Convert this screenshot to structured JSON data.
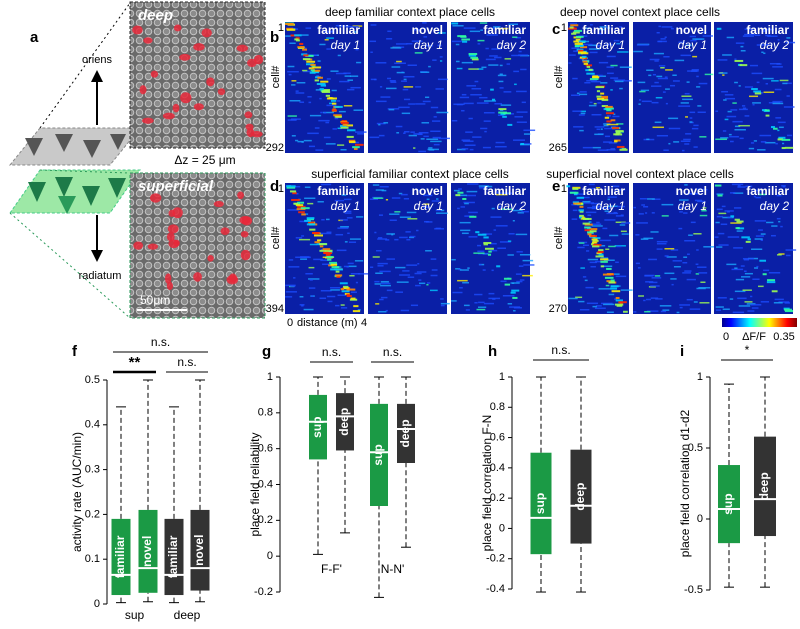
{
  "figure": {
    "a": {
      "label": "a",
      "oriens": "oriens",
      "radiatum": "radiatum",
      "deep": "deep",
      "superficial": "superficial",
      "dz": "Δz = 25 μm",
      "scale_bar": "50μm"
    },
    "heatmaps": [
      {
        "label": "b",
        "title": "deep familiar context place cells",
        "ylabel": "cell#",
        "first_cell": "1",
        "last_cell": "292",
        "tiles": [
          {
            "context": "familiar",
            "day": "day 1"
          },
          {
            "context": "novel",
            "day": "day 1"
          },
          {
            "context": "familiar",
            "day": "day 2"
          }
        ]
      },
      {
        "label": "c",
        "title": "deep novel context place cells",
        "ylabel": "cell#",
        "first_cell": "1",
        "last_cell": "265",
        "tiles": [
          {
            "context": "familiar",
            "day": "day 1"
          },
          {
            "context": "novel",
            "day": "day 1"
          },
          {
            "context": "familiar",
            "day": "day 2"
          }
        ]
      },
      {
        "label": "d",
        "title": "superficial familiar context place cells",
        "ylabel": "cell#",
        "first_cell": "1",
        "last_cell": "394",
        "tiles": [
          {
            "context": "familiar",
            "day": "day 1"
          },
          {
            "context": "novel",
            "day": "day 1"
          },
          {
            "context": "familiar",
            "day": "day 2"
          }
        ]
      },
      {
        "label": "e",
        "title": "superficial novel context place cells",
        "ylabel": "cell#",
        "first_cell": "1",
        "last_cell": "270",
        "tiles": [
          {
            "context": "familiar",
            "day": "day 1"
          },
          {
            "context": "novel",
            "day": "day 1"
          },
          {
            "context": "familiar",
            "day": "day 2"
          }
        ]
      }
    ],
    "distance_axis": {
      "start": "0",
      "label": "distance (m)",
      "end": "4"
    },
    "colorbar": {
      "min": "0",
      "label": "ΔF/F",
      "max": "0.35"
    }
  },
  "chart_data": [
    {
      "type": "box",
      "label": "f",
      "ylabel": "activity rate (AUC/min)",
      "ylim": [
        0,
        0.5
      ],
      "yticks": [
        0,
        0.1,
        0.2,
        0.3,
        0.4,
        0.5
      ],
      "groups": [
        "sup",
        "deep"
      ],
      "boxes": [
        {
          "label": "familiar",
          "color": "#1b9a45",
          "min": 0.003,
          "q1": 0.02,
          "median": 0.065,
          "q3": 0.19,
          "max": 0.44
        },
        {
          "label": "novel",
          "color": "#1b9a45",
          "min": 0.005,
          "q1": 0.025,
          "median": 0.08,
          "q3": 0.21,
          "max": 0.5
        },
        {
          "label": "familiar",
          "color": "#333333",
          "min": 0.003,
          "q1": 0.02,
          "median": 0.065,
          "q3": 0.19,
          "max": 0.44
        },
        {
          "label": "novel",
          "color": "#333333",
          "min": 0.005,
          "q1": 0.03,
          "median": 0.08,
          "q3": 0.21,
          "max": 0.5
        }
      ],
      "significance": [
        "n.s.",
        "**",
        "n.s."
      ]
    },
    {
      "type": "box",
      "label": "g",
      "ylabel": "place field reliability",
      "ylim": [
        -0.2,
        1
      ],
      "yticks": [
        -0.2,
        0,
        0.2,
        0.4,
        0.6,
        0.8,
        1
      ],
      "groups": [
        "F-F'",
        "N-N'"
      ],
      "boxes": [
        {
          "label": "sup",
          "color": "#1b9a45",
          "min": 0.01,
          "q1": 0.54,
          "median": 0.75,
          "q3": 0.9,
          "max": 1
        },
        {
          "label": "deep",
          "color": "#333333",
          "min": 0.13,
          "q1": 0.59,
          "median": 0.78,
          "q3": 0.91,
          "max": 1
        },
        {
          "label": "sup",
          "color": "#1b9a45",
          "min": -0.23,
          "q1": 0.28,
          "median": 0.58,
          "q3": 0.85,
          "max": 1
        },
        {
          "label": "deep",
          "color": "#333333",
          "min": 0.05,
          "q1": 0.52,
          "median": 0.71,
          "q3": 0.85,
          "max": 1
        }
      ],
      "significance": [
        "n.s.",
        "n.s."
      ]
    },
    {
      "type": "box",
      "label": "h",
      "ylabel": "place field correlation F-N",
      "ylim": [
        -0.4,
        1
      ],
      "yticks": [
        -0.4,
        -0.2,
        0,
        0.2,
        0.4,
        0.6,
        0.8,
        1
      ],
      "boxes": [
        {
          "label": "sup",
          "color": "#1b9a45",
          "min": -0.42,
          "q1": -0.17,
          "median": 0.07,
          "q3": 0.5,
          "max": 1
        },
        {
          "label": "deep",
          "color": "#333333",
          "min": -0.42,
          "q1": -0.1,
          "median": 0.15,
          "q3": 0.52,
          "max": 1
        }
      ],
      "significance": [
        "n.s."
      ]
    },
    {
      "type": "box",
      "label": "i",
      "ylabel": "place field correlation d1-d2",
      "ylim": [
        -0.5,
        1
      ],
      "yticks": [
        -0.5,
        0,
        0.5,
        1
      ],
      "boxes": [
        {
          "label": "sup",
          "color": "#1b9a45",
          "min": -0.48,
          "q1": -0.17,
          "median": 0.07,
          "q3": 0.38,
          "max": 0.95
        },
        {
          "label": "deep",
          "color": "#333333",
          "min": -0.48,
          "q1": -0.12,
          "median": 0.14,
          "q3": 0.58,
          "max": 1
        }
      ],
      "significance": [
        "*"
      ]
    }
  ]
}
